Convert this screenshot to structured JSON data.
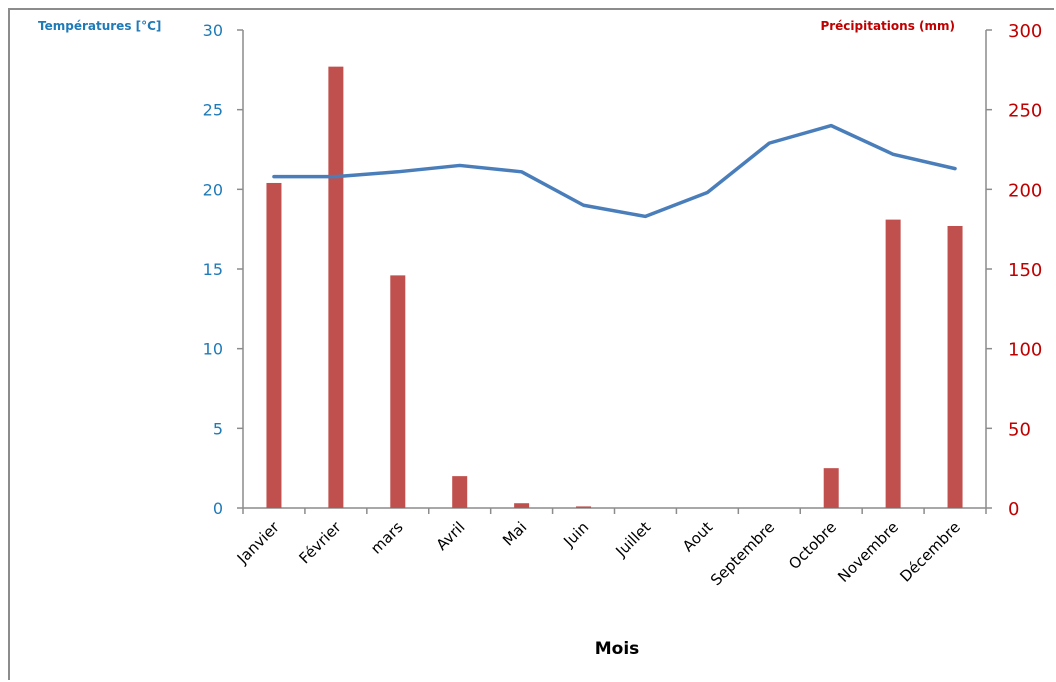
{
  "chart_data": {
    "type": "bar+line",
    "xlabel": "Mois",
    "categories": [
      "Janvier",
      "Février",
      "mars",
      "Avril",
      "Mai",
      "Juin",
      "Juillet",
      "Aout",
      "Septembre",
      "Octobre",
      "Novembre",
      "Décembre"
    ],
    "y_left": {
      "label": "Températures [°C]",
      "range": [
        0,
        30
      ],
      "ticks": [
        0,
        5,
        10,
        15,
        20,
        25,
        30
      ],
      "color": "#1f7ab8"
    },
    "y_right": {
      "label": "Précipitations (mm)",
      "range": [
        0,
        300
      ],
      "ticks": [
        0,
        50,
        100,
        150,
        200,
        250,
        300
      ],
      "color": "#c00000"
    },
    "series": [
      {
        "kind": "bar",
        "axis": "right",
        "color": "#c0504d",
        "values": [
          204,
          277,
          146,
          20,
          3,
          1,
          0,
          0,
          0,
          25,
          181,
          177
        ]
      },
      {
        "kind": "line",
        "axis": "left",
        "color": "#4a7ebb",
        "values": [
          20.8,
          20.8,
          21.1,
          21.5,
          21.1,
          19.0,
          18.3,
          19.8,
          22.9,
          24.0,
          22.2,
          21.3
        ]
      }
    ],
    "grid": false,
    "legend": "none"
  }
}
